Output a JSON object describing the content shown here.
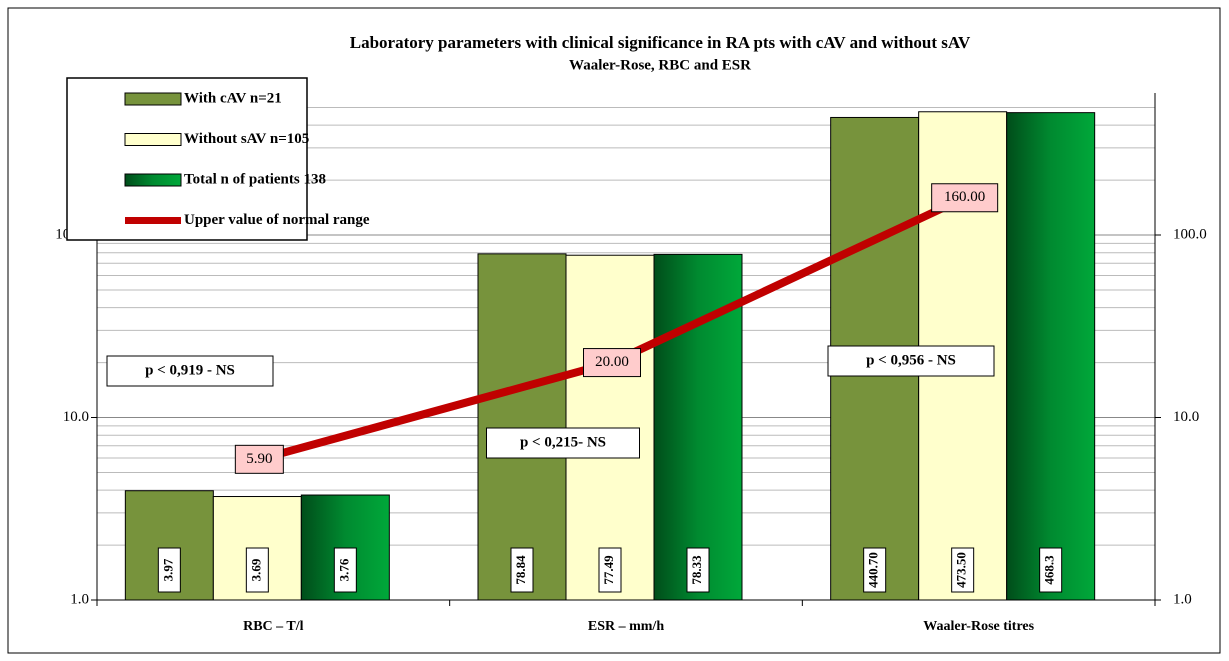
{
  "chart_data": {
    "type": "bar",
    "title": "Laboratory parameters with clinical significance in RA pts with cAV and without sAV",
    "subtitle": "Waaler-Rose, RBC and ESR",
    "categories": [
      "RBC – T/l",
      "ESR – mm/h",
      "Waaler-Rose titres"
    ],
    "log_scale": true,
    "grid": true,
    "legend": "upper left",
    "ylim": [
      1,
      600
    ],
    "yticks": [
      {
        "value": 1,
        "label": "1.0"
      },
      {
        "value": 10,
        "label": "10.0"
      },
      {
        "value": 100,
        "label": "100.0"
      }
    ],
    "y2lim": [
      1,
      600
    ],
    "y2ticks": [
      {
        "value": 1,
        "label": "1.0"
      },
      {
        "value": 10,
        "label": "10.0"
      },
      {
        "value": 100,
        "label": "100.0"
      }
    ],
    "series": [
      {
        "name": "With cAV n=21",
        "type": "bar",
        "color": "#77933c",
        "values": [
          3.97,
          78.84,
          440.7
        ],
        "value_labels": [
          "3.97",
          "78.84",
          "440.70"
        ]
      },
      {
        "name": "Without sAV n=105",
        "type": "bar",
        "color": "#ffffcc",
        "values": [
          3.69,
          77.49,
          473.5
        ],
        "value_labels": [
          "3.69",
          "77.49",
          "473.50"
        ]
      },
      {
        "name": "Total n of patients 138",
        "type": "bar",
        "color": "#00802b",
        "values": [
          3.76,
          78.33,
          468.3
        ],
        "value_labels": [
          "3.76",
          "78.33",
          "468.3"
        ]
      },
      {
        "name": "Upper value of normal range",
        "type": "line",
        "color": "#c00000",
        "values": [
          5.9,
          20,
          160
        ],
        "value_labels": [
          "5.90",
          "20.00",
          "160.00"
        ]
      }
    ],
    "annotations": [
      "p < 0,919 - NS",
      "p < 0,215- NS",
      "p < 0,956 - NS"
    ]
  }
}
